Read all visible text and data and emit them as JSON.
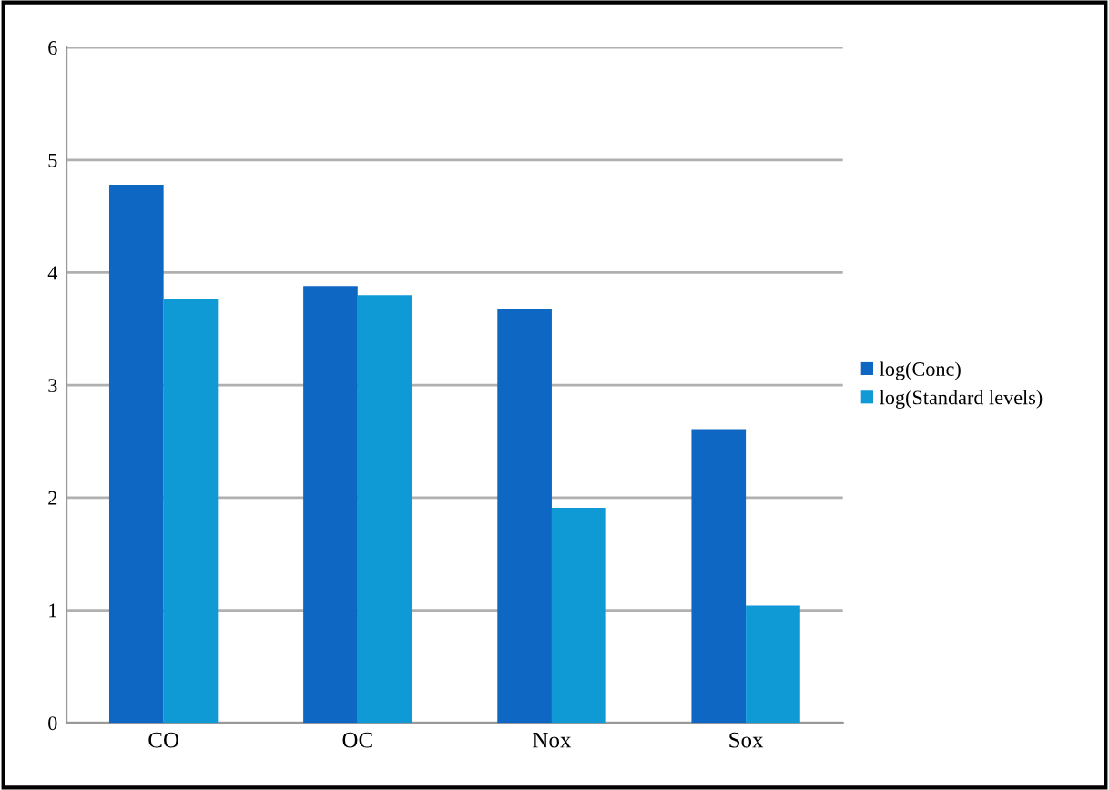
{
  "chart_data": {
    "type": "bar",
    "categories": [
      "CO",
      "OC",
      "Nox",
      "Sox"
    ],
    "series": [
      {
        "name": "log(Conc)",
        "color": "#0f67c4",
        "values": [
          4.78,
          3.88,
          3.68,
          2.61
        ]
      },
      {
        "name": "log(Standard levels)",
        "color": "#0f9ad6",
        "values": [
          3.77,
          3.8,
          1.91,
          1.04
        ]
      }
    ],
    "ylim": [
      0,
      6
    ],
    "yticks": [
      0,
      1,
      2,
      3,
      4,
      5,
      6
    ],
    "grid": "y",
    "legend": "right"
  }
}
